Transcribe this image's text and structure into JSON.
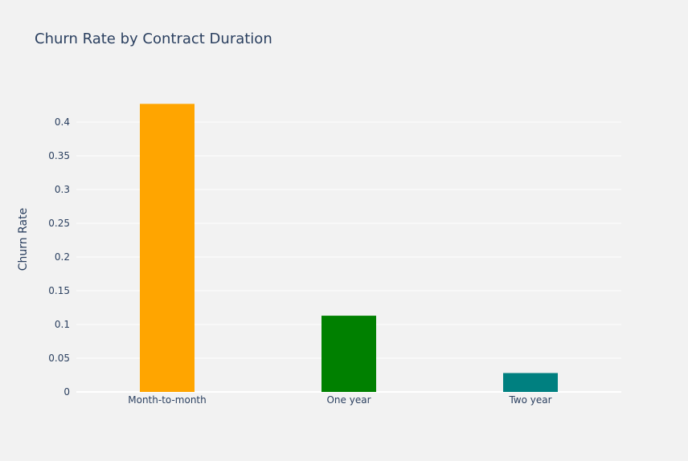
{
  "chart_data": {
    "type": "bar",
    "title": "Churn Rate by Contract Duration",
    "xlabel": "",
    "ylabel": "Churn Rate",
    "categories": [
      "Month-to-month",
      "One year",
      "Two year"
    ],
    "values": [
      0.427,
      0.113,
      0.028
    ],
    "colors": [
      "#ffa500",
      "#008000",
      "#008080"
    ],
    "ylim": [
      0,
      0.45
    ],
    "yticks": [
      0,
      0.05,
      0.1,
      0.15,
      0.2,
      0.25,
      0.3,
      0.35,
      0.4
    ],
    "ytick_labels": [
      "0",
      "0.05",
      "0.1",
      "0.15",
      "0.2",
      "0.25",
      "0.3",
      "0.35",
      "0.4"
    ],
    "grid": true,
    "legend": false
  },
  "colors": {
    "background": "#f2f2f2",
    "grid": "#ffffff",
    "text": "#2a3f5f"
  }
}
